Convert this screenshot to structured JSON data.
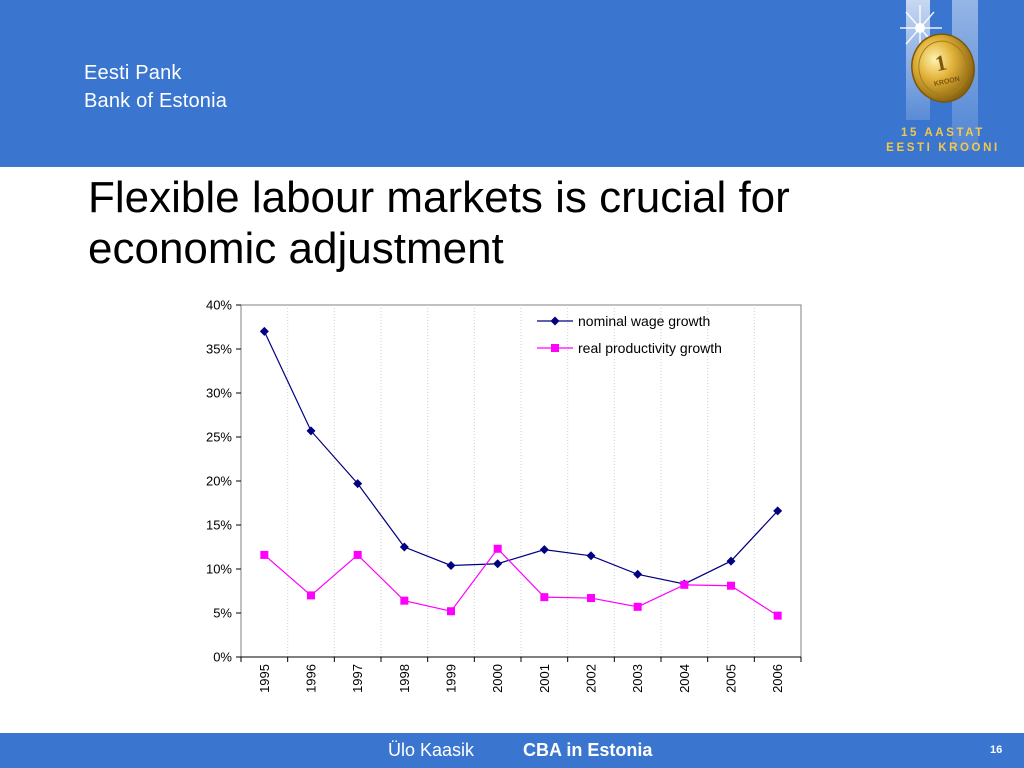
{
  "header": {
    "bank_name_et": "Eesti Pank",
    "bank_name_en": "Bank of Estonia",
    "logo_line1": "15 AASTAT",
    "logo_line2": "EESTI KROONI",
    "logo_coin_text": "KROON"
  },
  "slide": {
    "title": "Flexible labour markets is crucial for economic adjustment"
  },
  "footer": {
    "author": "Ülo Kaasik",
    "course": "CBA in Estonia",
    "page": "16"
  },
  "colors": {
    "brand_blue": "#3a76cf",
    "logo_gold": "#f2c84a",
    "nominal_series": "#000080",
    "real_series": "#ff00ff"
  },
  "chart_data": {
    "type": "line",
    "title": "",
    "xlabel": "",
    "ylabel": "",
    "x": [
      "1995",
      "1996",
      "1997",
      "1998",
      "1999",
      "2000",
      "2001",
      "2002",
      "2003",
      "2004",
      "2005",
      "2006"
    ],
    "ylim": [
      0,
      0.4
    ],
    "yticks": [
      0,
      0.05,
      0.1,
      0.15,
      0.2,
      0.25,
      0.3,
      0.35,
      0.4
    ],
    "ytick_labels": [
      "0%",
      "5%",
      "10%",
      "15%",
      "20%",
      "25%",
      "30%",
      "35%",
      "40%"
    ],
    "grid": "vertical",
    "legend_position": "top-right",
    "series": [
      {
        "name": "nominal wage growth",
        "marker": "diamond",
        "color": "#000080",
        "values": [
          0.37,
          0.257,
          0.197,
          0.125,
          0.104,
          0.106,
          0.122,
          0.115,
          0.094,
          0.083,
          0.109,
          0.166
        ]
      },
      {
        "name": "real productivity growth",
        "marker": "square",
        "color": "#ff00ff",
        "values": [
          0.116,
          0.07,
          0.116,
          0.064,
          0.052,
          0.123,
          0.068,
          0.067,
          0.057,
          0.082,
          0.081,
          0.047
        ]
      }
    ]
  }
}
